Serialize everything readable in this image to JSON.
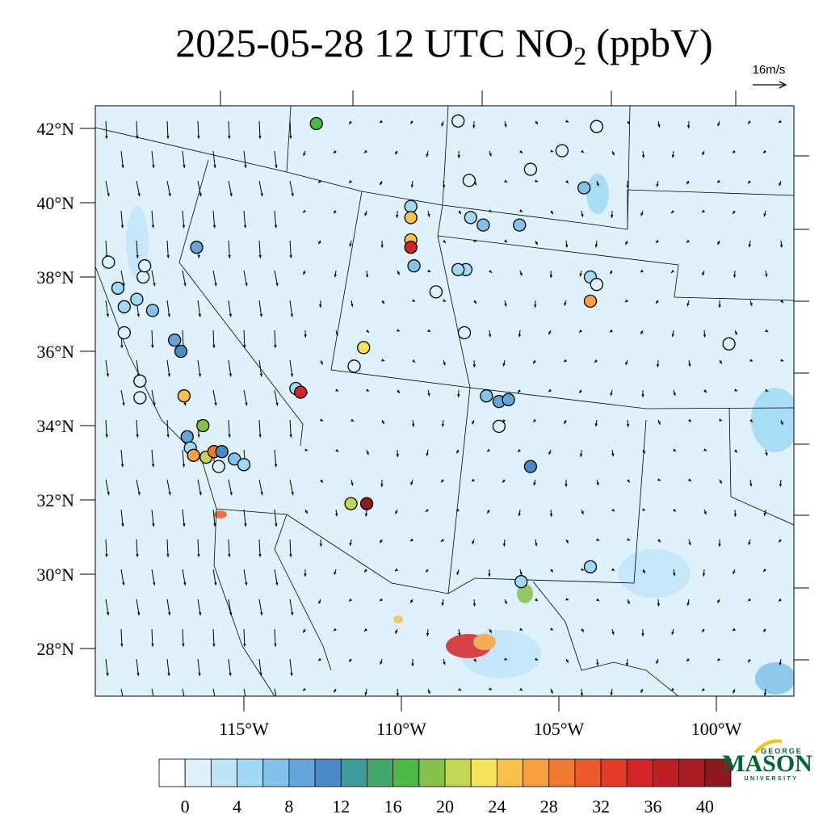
{
  "title": {
    "main": "2025-05-28 12 UTC NO",
    "subscript": "2",
    "unit": "(ppbV)"
  },
  "wind_reference": "16m/s",
  "lat_ticks": [
    {
      "value": 42,
      "label": "42°N"
    },
    {
      "value": 40,
      "label": "40°N"
    },
    {
      "value": 38,
      "label": "38°N"
    },
    {
      "value": 36,
      "label": "36°N"
    },
    {
      "value": 34,
      "label": "34°N"
    },
    {
      "value": 32,
      "label": "32°N"
    },
    {
      "value": 30,
      "label": "30°N"
    },
    {
      "value": 28,
      "label": "28°N"
    }
  ],
  "lon_ticks": [
    {
      "value": -115,
      "label": "115°W"
    },
    {
      "value": -110,
      "label": "110°W"
    },
    {
      "value": -105,
      "label": "105°W"
    },
    {
      "value": -100,
      "label": "100°W"
    }
  ],
  "colorbar": {
    "levels": [
      0,
      2,
      4,
      6,
      8,
      10,
      12,
      14,
      16,
      18,
      20,
      22,
      24,
      26,
      28,
      30,
      32,
      34,
      36,
      38,
      40
    ],
    "ticks": [
      0,
      4,
      8,
      12,
      16,
      20,
      24,
      28,
      32,
      36,
      40
    ],
    "colors": [
      "#ffffff",
      "#dff2fb",
      "#bfe6f8",
      "#9fd9f5",
      "#82c2eb",
      "#66a5dc",
      "#4a8acb",
      "#3f9a9a",
      "#45a86a",
      "#4cb848",
      "#84c24a",
      "#c3d653",
      "#f7e35a",
      "#f8c24a",
      "#f7a03e",
      "#f27a30",
      "#ec5a2c",
      "#e23b28",
      "#d42428",
      "#c01e25",
      "#a81b22",
      "#8c1a1e"
    ]
  },
  "logo": {
    "top": "GEORGE",
    "main": "MASON",
    "bottom": "UNIVERSITY"
  },
  "stations": [
    {
      "lat": 42.13,
      "lon": -112.7,
      "value": 17
    },
    {
      "lat": 38.4,
      "lon": -119.3,
      "value": 1
    },
    {
      "lat": 39.9,
      "lon": -109.7,
      "value": 5
    },
    {
      "lat": 39.6,
      "lon": -109.7,
      "value": 25
    },
    {
      "lat": 39.0,
      "lon": -109.7,
      "value": 24
    },
    {
      "lat": 38.8,
      "lon": -109.7,
      "value": 34
    },
    {
      "lat": 38.3,
      "lon": -109.6,
      "value": 6
    },
    {
      "lat": 38.8,
      "lon": -116.5,
      "value": 8
    },
    {
      "lat": 36.3,
      "lon": -117.2,
      "value": 9
    },
    {
      "lat": 36.0,
      "lon": -117.0,
      "value": 10
    },
    {
      "lat": 34.8,
      "lon": -116.9,
      "value": 24
    },
    {
      "lat": 34.0,
      "lon": -116.3,
      "value": 18
    },
    {
      "lat": 33.7,
      "lon": -116.8,
      "value": 8
    },
    {
      "lat": 33.4,
      "lon": -116.7,
      "value": 5
    },
    {
      "lat": 33.15,
      "lon": -116.2,
      "value": 21
    },
    {
      "lat": 33.2,
      "lon": -116.6,
      "value": 27
    },
    {
      "lat": 33.3,
      "lon": -115.95,
      "value": 29
    },
    {
      "lat": 33.3,
      "lon": -115.7,
      "value": 10
    },
    {
      "lat": 32.9,
      "lon": -115.8,
      "value": 1
    },
    {
      "lat": 33.1,
      "lon": -115.3,
      "value": 6
    },
    {
      "lat": 32.95,
      "lon": -115.0,
      "value": 5
    },
    {
      "lat": 35.0,
      "lon": -113.35,
      "value": 4
    },
    {
      "lat": 34.9,
      "lon": -113.2,
      "value": 34
    },
    {
      "lat": 36.1,
      "lon": -111.2,
      "value": 23
    },
    {
      "lat": 35.6,
      "lon": -111.5,
      "value": 1
    },
    {
      "lat": 31.9,
      "lon": -111.6,
      "value": 21
    },
    {
      "lat": 31.9,
      "lon": -111.1,
      "value": 40
    },
    {
      "lat": 34.8,
      "lon": -107.3,
      "value": 7
    },
    {
      "lat": 34.65,
      "lon": -106.9,
      "value": 9
    },
    {
      "lat": 34.7,
      "lon": -106.6,
      "value": 8
    },
    {
      "lat": 33.98,
      "lon": -106.9,
      "value": 1
    },
    {
      "lat": 32.9,
      "lon": -105.9,
      "value": 11
    },
    {
      "lat": 38.0,
      "lon": -104.0,
      "value": 5
    },
    {
      "lat": 37.8,
      "lon": -103.8,
      "value": 1
    },
    {
      "lat": 37.35,
      "lon": -104.0,
      "value": 27
    },
    {
      "lat": 40.4,
      "lon": -104.2,
      "value": 7
    },
    {
      "lat": 42.05,
      "lon": -103.8,
      "value": 1
    },
    {
      "lat": 40.9,
      "lon": -105.9,
      "value": 1
    },
    {
      "lat": 41.4,
      "lon": -104.9,
      "value": 1
    },
    {
      "lat": 39.4,
      "lon": -106.25,
      "value": 7
    },
    {
      "lat": 39.4,
      "lon": -107.4,
      "value": 6
    },
    {
      "lat": 39.6,
      "lon": -107.8,
      "value": 4
    },
    {
      "lat": 40.6,
      "lon": -107.85,
      "value": 1
    },
    {
      "lat": 42.2,
      "lon": -108.2,
      "value": 1
    },
    {
      "lat": 37.6,
      "lon": -108.9,
      "value": 1
    },
    {
      "lat": 36.5,
      "lon": -108.0,
      "value": 1
    },
    {
      "lat": 38.2,
      "lon": -107.95,
      "value": 4
    },
    {
      "lat": 38.2,
      "lon": -108.2,
      "value": 5
    },
    {
      "lat": 36.2,
      "lon": -99.6,
      "value": 1
    },
    {
      "lat": 30.2,
      "lon": -104.0,
      "value": 5
    },
    {
      "lat": 29.8,
      "lon": -106.2,
      "value": 5
    },
    {
      "lat": 35.2,
      "lon": -118.3,
      "value": 1
    },
    {
      "lat": 34.75,
      "lon": -118.3,
      "value": 1
    },
    {
      "lat": 36.5,
      "lon": -118.8,
      "value": 1
    },
    {
      "lat": 37.2,
      "lon": -118.8,
      "value": 5
    },
    {
      "lat": 37.1,
      "lon": -117.9,
      "value": 6
    },
    {
      "lat": 37.4,
      "lon": -118.4,
      "value": 5
    },
    {
      "lat": 37.7,
      "lon": -119.0,
      "value": 4
    },
    {
      "lat": 38.0,
      "lon": -118.2,
      "value": 1
    },
    {
      "lat": 38.3,
      "lon": -118.15,
      "value": 1
    }
  ]
}
